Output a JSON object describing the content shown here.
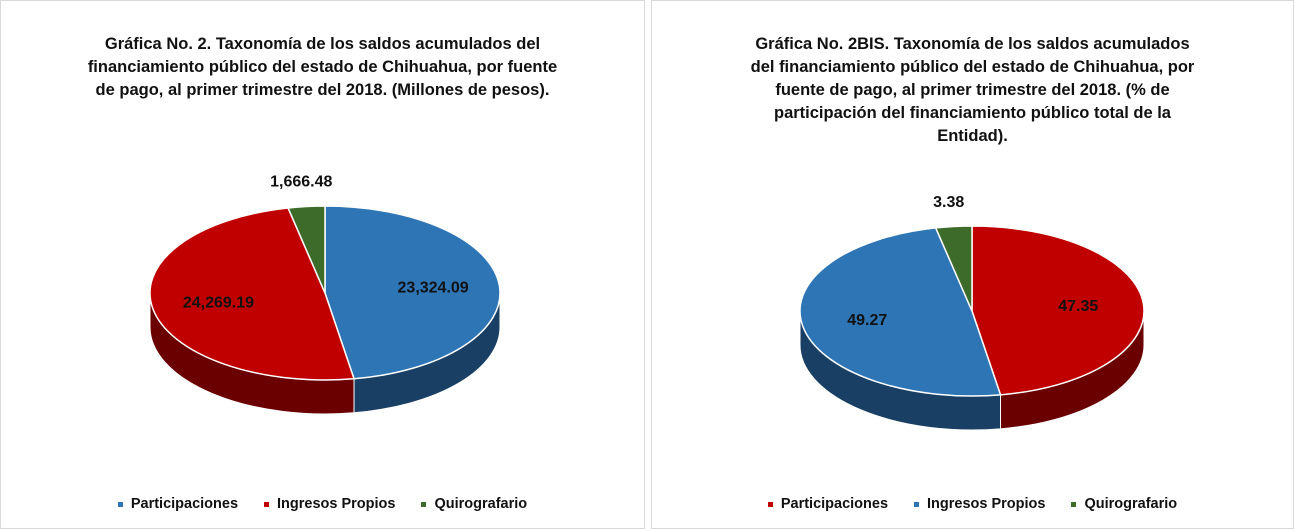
{
  "chart_data": [
    {
      "type": "pie",
      "title": "Gráfica No. 2. Taxonomía de los saldos acumulados del financiamiento público del estado de Chihuahua, por fuente de pago, al primer trimestre del 2018. (Millones de pesos).",
      "categories": [
        "Participaciones",
        "Ingresos Propios",
        "Quirografario"
      ],
      "values": [
        23324.09,
        24269.19,
        1666.48
      ],
      "value_labels": [
        "23,324.09",
        "24,269.19",
        "1,666.48"
      ],
      "colors": [
        "#2e75b6",
        "#c00000",
        "#3d6b2a"
      ],
      "legend": "bottom"
    },
    {
      "type": "pie",
      "title": "Gráfica No. 2BIS. Taxonomía de los saldos acumulados del financiamiento público del estado de Chihuahua, por fuente de pago, al primer trimestre del 2018. (% de participación del financiamiento público total de la Entidad).",
      "categories": [
        "Participaciones",
        "Ingresos Propios",
        "Quirografario"
      ],
      "values": [
        47.35,
        49.27,
        3.38
      ],
      "colors": [
        "#c00000",
        "#2e75b6",
        "#3d6b2a"
      ],
      "legend": "bottom"
    }
  ]
}
